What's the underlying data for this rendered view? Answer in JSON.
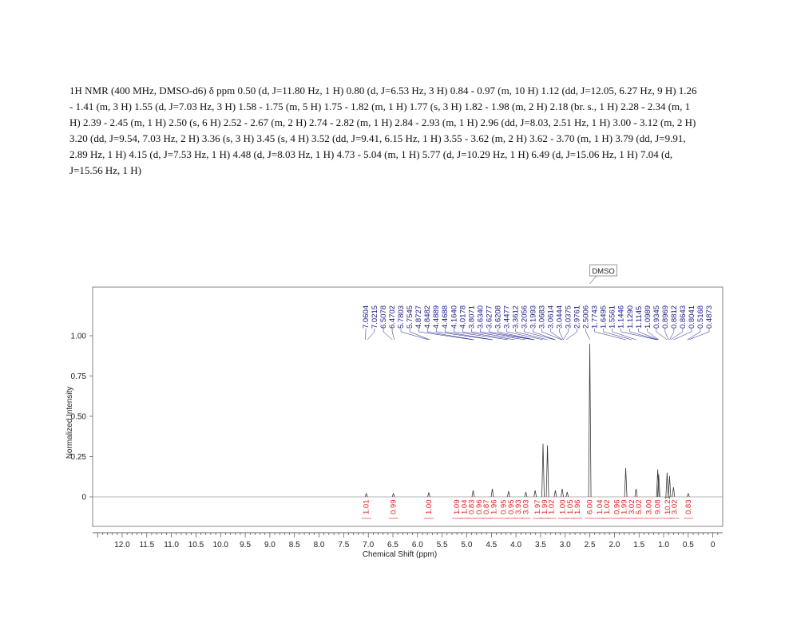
{
  "header": {
    "text": "1H NMR (400 MHz, DMSO-d6) δ ppm 0.50 (d, J=11.80 Hz, 1 H) 0.80 (d, J=6.53 Hz, 3 H) 0.84 - 0.97 (m, 10 H) 1.12 (dd, J=12.05, 6.27 Hz, 9 H) 1.26 - 1.41 (m, 3 H) 1.55 (d, J=7.03 Hz, 3 H) 1.58 - 1.75 (m, 5 H) 1.75 - 1.82 (m, 1 H) 1.77 (s, 3 H) 1.82 - 1.98 (m, 2 H) 2.18 (br. s., 1 H) 2.28 - 2.34 (m, 1 H) 2.39 - 2.45 (m, 1 H) 2.50 (s, 6 H) 2.52 - 2.67 (m, 2 H) 2.74 - 2.82 (m, 1 H) 2.84 - 2.93 (m, 1 H) 2.96 (dd, J=8.03, 2.51 Hz, 1 H) 3.00 - 3.12 (m, 2 H) 3.20 (dd, J=9.54, 7.03 Hz, 2 H) 3.36 (s, 3 H) 3.45 (s, 4 H) 3.52 (dd, J=9.41, 6.15 Hz, 1 H) 3.55 - 3.62 (m, 2 H) 3.62 - 3.70 (m, 1 H) 3.79 (dd, J=9.91, 2.89 Hz, 1 H) 4.15 (d, J=7.53 Hz, 1 H) 4.48 (d, J=8.03 Hz, 1 H) 4.73 - 5.04 (m, 1 H) 5.77 (d, J=10.29 Hz, 1 H) 6.49 (d, J=15.06 Hz, 1 H) 7.04 (d, J=15.56 Hz, 1 H)"
  },
  "chart_data": {
    "type": "line",
    "xlabel": "Chemical Shift (ppm)",
    "ylabel": "Normalized Intensity",
    "xlim": [
      12.6,
      -0.2
    ],
    "x_reversed": true,
    "ylim": [
      -0.05,
      1.08
    ],
    "x_ticks": [
      12.0,
      11.5,
      11.0,
      10.5,
      10.0,
      9.5,
      9.0,
      8.5,
      8.0,
      7.5,
      7.0,
      6.5,
      6.0,
      5.5,
      5.0,
      4.5,
      4.0,
      3.5,
      3.0,
      2.5,
      2.0,
      1.5,
      1.0,
      0.5,
      0
    ],
    "y_ticks": [
      {
        "value": 0,
        "label": "0"
      },
      {
        "value": 0.25,
        "label": "0.25"
      },
      {
        "value": 0.5,
        "label": "0.50"
      },
      {
        "value": 0.75,
        "label": "0.75"
      },
      {
        "value": 1.0,
        "label": "1.00"
      }
    ],
    "peaks": [
      {
        "x": 7.04,
        "y": 0.02
      },
      {
        "x": 6.49,
        "y": 0.02
      },
      {
        "x": 5.77,
        "y": 0.025
      },
      {
        "x": 4.87,
        "y": 0.04
      },
      {
        "x": 4.48,
        "y": 0.05
      },
      {
        "x": 4.15,
        "y": 0.035
      },
      {
        "x": 3.8,
        "y": 0.03
      },
      {
        "x": 3.61,
        "y": 0.04
      },
      {
        "x": 3.45,
        "y": 0.33
      },
      {
        "x": 3.36,
        "y": 0.32
      },
      {
        "x": 3.2,
        "y": 0.04
      },
      {
        "x": 3.06,
        "y": 0.05
      },
      {
        "x": 2.96,
        "y": 0.03
      },
      {
        "x": 2.5,
        "y": 0.95
      },
      {
        "x": 1.77,
        "y": 0.18
      },
      {
        "x": 1.56,
        "y": 0.05
      },
      {
        "x": 1.12,
        "y": 0.17
      },
      {
        "x": 1.1,
        "y": 0.14
      },
      {
        "x": 0.93,
        "y": 0.15
      },
      {
        "x": 0.88,
        "y": 0.13
      },
      {
        "x": 0.8,
        "y": 0.06
      },
      {
        "x": 0.5,
        "y": 0.02
      }
    ],
    "annotation": {
      "label": "DMSO",
      "x": 2.5
    },
    "peak_labels": [
      {
        "text": "7.0604",
        "x": 7.06
      },
      {
        "text": "7.0215",
        "x": 7.02
      },
      {
        "text": "6.5078",
        "x": 6.51
      },
      {
        "text": "6.4702",
        "x": 6.47
      },
      {
        "text": "5.7803",
        "x": 5.78
      },
      {
        "text": "5.7545",
        "x": 5.75
      },
      {
        "text": "4.8727",
        "x": 4.87
      },
      {
        "text": "4.8482",
        "x": 4.85
      },
      {
        "text": "4.4889",
        "x": 4.49
      },
      {
        "text": "4.4688",
        "x": 4.47
      },
      {
        "text": "4.1640",
        "x": 4.16
      },
      {
        "text": "4.0178",
        "x": 4.02
      },
      {
        "text": "3.8071",
        "x": 3.81
      },
      {
        "text": "3.6340",
        "x": 3.63
      },
      {
        "text": "3.6277",
        "x": 3.63
      },
      {
        "text": "3.6208",
        "x": 3.62
      },
      {
        "text": "3.4477",
        "x": 3.45
      },
      {
        "text": "3.3612",
        "x": 3.36
      },
      {
        "text": "3.2056",
        "x": 3.21
      },
      {
        "text": "3.1993",
        "x": 3.2
      },
      {
        "text": "3.0683",
        "x": 3.07
      },
      {
        "text": "3.0614",
        "x": 3.06
      },
      {
        "text": "3.0444",
        "x": 3.04
      },
      {
        "text": "3.0375",
        "x": 3.04
      },
      {
        "text": "2.9761",
        "x": 2.98
      },
      {
        "text": "2.5006",
        "x": 2.5
      },
      {
        "text": "1.7743",
        "x": 1.77
      },
      {
        "text": "1.6495",
        "x": 1.65
      },
      {
        "text": "1.5561",
        "x": 1.56
      },
      {
        "text": "1.1446",
        "x": 1.14
      },
      {
        "text": "1.1290",
        "x": 1.13
      },
      {
        "text": "1.1145",
        "x": 1.11
      },
      {
        "text": "1.0989",
        "x": 1.1
      },
      {
        "text": "0.9345",
        "x": 0.93
      },
      {
        "text": "0.8969",
        "x": 0.9
      },
      {
        "text": "0.8812",
        "x": 0.88
      },
      {
        "text": "0.8643",
        "x": 0.86
      },
      {
        "text": "0.8041",
        "x": 0.8
      },
      {
        "text": "0.5168",
        "x": 0.52
      },
      {
        "text": "0.4873",
        "x": 0.49
      }
    ],
    "integrations": [
      {
        "text": "1.01",
        "x": 7.04
      },
      {
        "text": "0.99",
        "x": 6.49
      },
      {
        "text": "1.00",
        "x": 5.77
      },
      {
        "text": "1.09",
        "x": 5.2
      },
      {
        "text": "1.04",
        "x": 5.05
      },
      {
        "text": "0.83",
        "x": 4.9
      },
      {
        "text": "0.96",
        "x": 4.75
      },
      {
        "text": "0.87",
        "x": 4.6
      },
      {
        "text": "1.96",
        "x": 4.45
      },
      {
        "text": "0.95",
        "x": 4.25
      },
      {
        "text": "0.95",
        "x": 4.1
      },
      {
        "text": "3.93",
        "x": 3.95
      },
      {
        "text": "3.03",
        "x": 3.8
      },
      {
        "text": "1.97",
        "x": 3.56
      },
      {
        "text": "1.99",
        "x": 3.42
      },
      {
        "text": "1.02",
        "x": 3.28
      },
      {
        "text": "1.00",
        "x": 3.05
      },
      {
        "text": "1.05",
        "x": 2.9
      },
      {
        "text": "1.96",
        "x": 2.75
      },
      {
        "text": "6.00",
        "x": 2.5
      },
      {
        "text": "1.04",
        "x": 2.3
      },
      {
        "text": "1.02",
        "x": 2.15
      },
      {
        "text": "0.96",
        "x": 1.95
      },
      {
        "text": "1.99",
        "x": 1.8
      },
      {
        "text": "3.02",
        "x": 1.65
      },
      {
        "text": "5.02",
        "x": 1.5
      },
      {
        "text": "3.00",
        "x": 1.3
      },
      {
        "text": "9.08",
        "x": 1.12
      },
      {
        "text": "10.21",
        "x": 0.92
      },
      {
        "text": "3.02",
        "x": 0.78
      },
      {
        "text": "0.83",
        "x": 0.5
      }
    ],
    "colors": {
      "spectrum": "#3a3a3a",
      "peak_label": "#1a1a8c",
      "integration": "#e02020",
      "baseline": "#9a9a9a"
    }
  }
}
